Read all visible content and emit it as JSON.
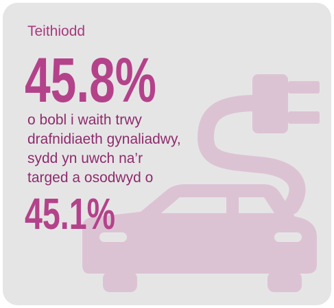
{
  "intro": "Teithiodd",
  "figure": "45.8%",
  "body": [
    "o bobl i waith trwy",
    "drafnidiaeth gynaliadwy,",
    "sydd yn uwch na’r",
    "targed a osodwyd o"
  ],
  "target": "45.1%"
}
